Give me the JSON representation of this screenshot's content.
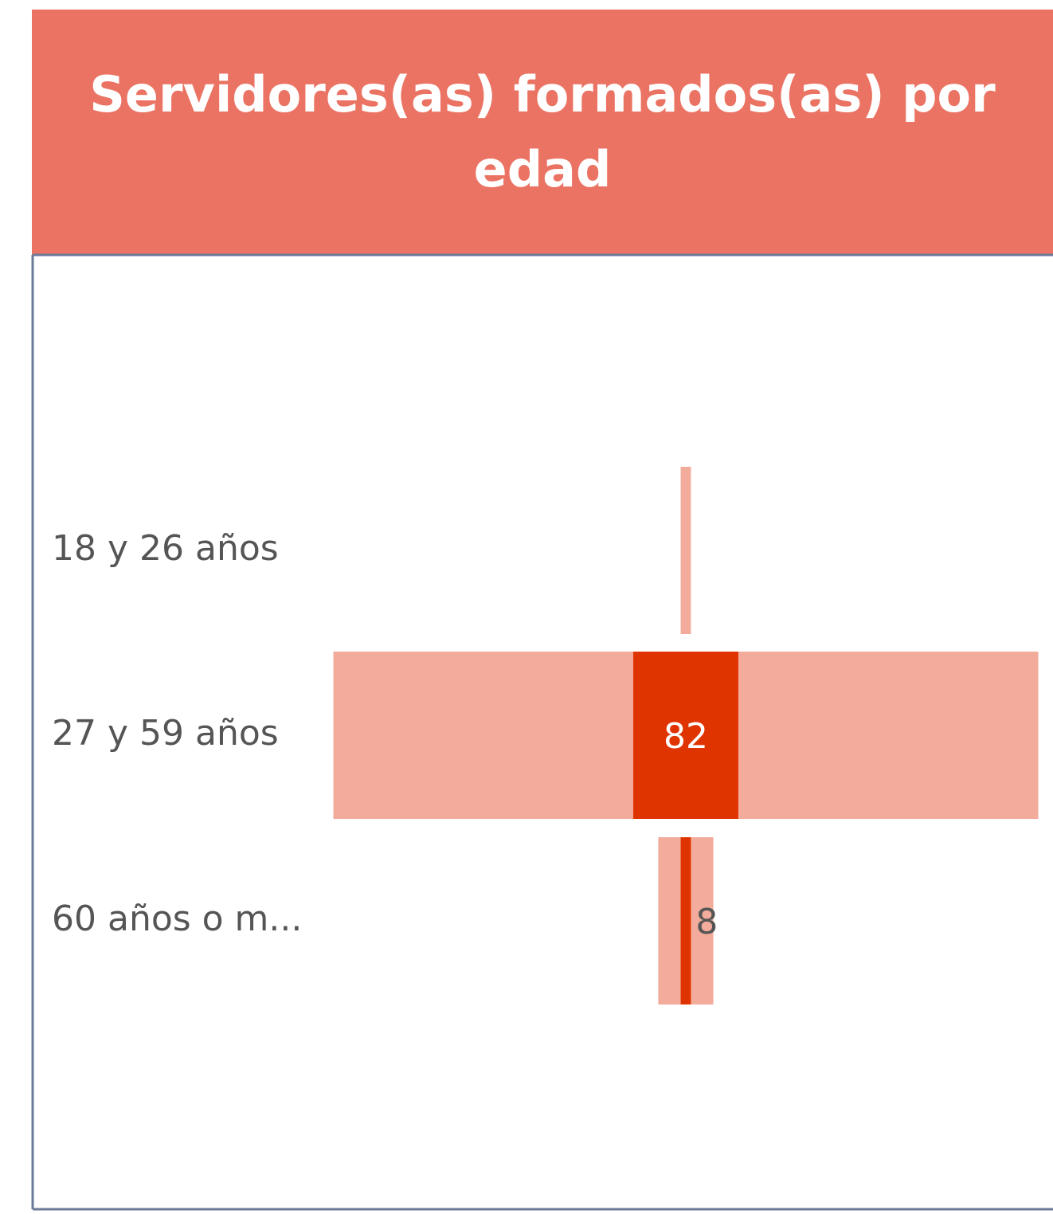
{
  "chart_data": {
    "type": "funnel",
    "title": "Servidores(as) formados(as) por edad",
    "categories": [
      "18 y 26 años",
      "27 y 59 años",
      "60 años o m..."
    ],
    "series": [
      {
        "color": "#f3ab9b",
        "values": [
          8,
          550,
          43
        ]
      },
      {
        "color": "#e03400",
        "values": [
          null,
          82,
          8
        ]
      }
    ]
  }
}
